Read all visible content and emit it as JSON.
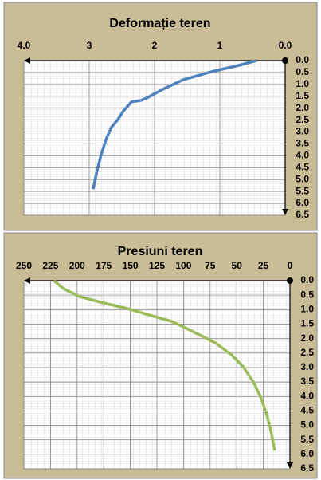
{
  "chart_data": [
    {
      "type": "line",
      "title": "Deformație teren",
      "color": "#4f81bd",
      "x": [
        0.44,
        0.71,
        1.13,
        1.56,
        1.87,
        2.09,
        2.2,
        2.35,
        2.48,
        2.56,
        2.66,
        2.74,
        2.82,
        2.88,
        2.94
      ],
      "values": [
        0,
        0.2,
        0.47,
        0.8,
        1.2,
        1.53,
        1.67,
        1.73,
        2.13,
        2.47,
        2.8,
        3.3,
        3.97,
        4.63,
        5.4
      ],
      "xlim": [
        4,
        0
      ],
      "ylim": [
        6.5,
        0
      ],
      "xticks": [
        {
          "value": 4,
          "label": "4.0"
        },
        3,
        2,
        1,
        {
          "value": 0,
          "label": "0.0"
        }
      ],
      "yticks": [
        {
          "value": 0,
          "label": "0.0"
        },
        0.5,
        {
          "value": 1,
          "label": "1.0"
        },
        1.5,
        {
          "value": 2,
          "label": "2.0"
        },
        2.5,
        {
          "value": 3,
          "label": "3.0"
        },
        3.5,
        {
          "value": 4,
          "label": "4.0"
        },
        4.5,
        {
          "value": 5,
          "label": "5.0"
        },
        5.5,
        {
          "value": 6,
          "label": "6.0"
        },
        6.5
      ],
      "grid": true
    },
    {
      "type": "line",
      "title": "Presiuni teren",
      "color": "#9bbb59",
      "x": [
        221.6,
        212.6,
        197.6,
        175,
        152.7,
        130,
        111.5,
        100,
        85,
        70,
        55,
        44,
        34,
        27,
        21.7,
        18,
        14.2
      ],
      "values": [
        0,
        0.28,
        0.55,
        0.77,
        0.96,
        1.21,
        1.4,
        1.6,
        1.87,
        2.15,
        2.56,
        2.97,
        3.52,
        4.07,
        4.63,
        5.18,
        5.87
      ],
      "xlim": [
        250,
        0
      ],
      "ylim": [
        6.5,
        0
      ],
      "xticks": [
        250,
        225,
        200,
        175,
        150,
        125,
        100,
        75,
        50,
        25,
        0
      ],
      "yticks": [
        {
          "value": 0,
          "label": "0.0"
        },
        0.5,
        {
          "value": 1,
          "label": "1.0"
        },
        1.5,
        {
          "value": 2,
          "label": "2.0"
        },
        2.5,
        {
          "value": 3,
          "label": "3.0"
        },
        3.5,
        {
          "value": 4,
          "label": "4.0"
        },
        4.5,
        {
          "value": 5,
          "label": "5.0"
        },
        5.5,
        {
          "value": 6,
          "label": "6.0"
        },
        6.5
      ],
      "grid": true
    }
  ]
}
